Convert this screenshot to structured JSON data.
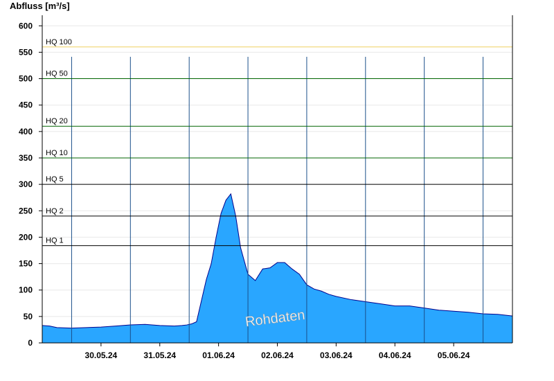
{
  "chart_data": {
    "type": "area",
    "title": "",
    "ylabel": "Abfluss [m³/s]",
    "xlabel": "",
    "ylim": [
      0,
      620
    ],
    "y_ticks": [
      0,
      50,
      100,
      150,
      200,
      250,
      300,
      350,
      400,
      450,
      500,
      550,
      600
    ],
    "x_range_days": [
      "29.05.24 12:00",
      "06.06.24 12:00"
    ],
    "x_ticks": [
      "30.05.24",
      "31.05.24",
      "01.06.24",
      "02.06.24",
      "03.06.24",
      "04.06.24",
      "05.06.24"
    ],
    "thresholds": [
      {
        "label": "HQ 1",
        "value": 184,
        "color": "#000000"
      },
      {
        "label": "HQ 2",
        "value": 240,
        "color": "#000000"
      },
      {
        "label": "HQ 5",
        "value": 300,
        "color": "#000000"
      },
      {
        "label": "HQ 10",
        "value": 350,
        "color": "#006400"
      },
      {
        "label": "HQ 20",
        "value": 410,
        "color": "#006400"
      },
      {
        "label": "HQ 50",
        "value": 500,
        "color": "#006400"
      },
      {
        "label": "HQ 100",
        "value": 560,
        "color": "#f0d060"
      }
    ],
    "series": [
      {
        "fill_color": "#29a6ff",
        "line_color": "#00008b",
        "x": [
          "29.05.24 12:00",
          "29.05.24 15:00",
          "29.05.24 18:00",
          "30.05.24 00:00",
          "30.05.24 06:00",
          "30.05.24 12:00",
          "30.05.24 18:00",
          "31.05.24 00:00",
          "31.05.24 06:00",
          "31.05.24 12:00",
          "31.05.24 18:00",
          "31.05.24 21:00",
          "31.05.24 23:00",
          "01.06.24 01:00",
          "01.06.24 03:00",
          "01.06.24 05:00",
          "01.06.24 07:00",
          "01.06.24 09:00",
          "01.06.24 11:00",
          "01.06.24 13:00",
          "01.06.24 15:00",
          "01.06.24 17:00",
          "01.06.24 19:00",
          "01.06.24 21:00",
          "02.06.24 00:00",
          "02.06.24 03:00",
          "02.06.24 06:00",
          "02.06.24 09:00",
          "02.06.24 12:00",
          "02.06.24 15:00",
          "02.06.24 18:00",
          "02.06.24 21:00",
          "03.06.24 00:00",
          "03.06.24 03:00",
          "03.06.24 06:00",
          "03.06.24 09:00",
          "03.06.24 12:00",
          "03.06.24 18:00",
          "04.06.24 00:00",
          "04.06.24 06:00",
          "04.06.24 12:00",
          "04.06.24 18:00",
          "05.06.24 00:00",
          "05.06.24 06:00",
          "05.06.24 12:00",
          "05.06.24 18:00",
          "06.06.24 00:00",
          "06.06.24 06:00",
          "06.06.24 12:00"
        ],
        "values": [
          33,
          32,
          29,
          28,
          29,
          30,
          32,
          34,
          35,
          33,
          32,
          33,
          34,
          36,
          40,
          80,
          120,
          150,
          200,
          245,
          270,
          282,
          240,
          180,
          130,
          118,
          140,
          142,
          152,
          152,
          140,
          130,
          110,
          102,
          98,
          92,
          88,
          82,
          78,
          74,
          70,
          70,
          66,
          62,
          60,
          58,
          55,
          54,
          51
        ]
      }
    ],
    "annotations": [
      "Rohdaten"
    ],
    "grid": true
  }
}
